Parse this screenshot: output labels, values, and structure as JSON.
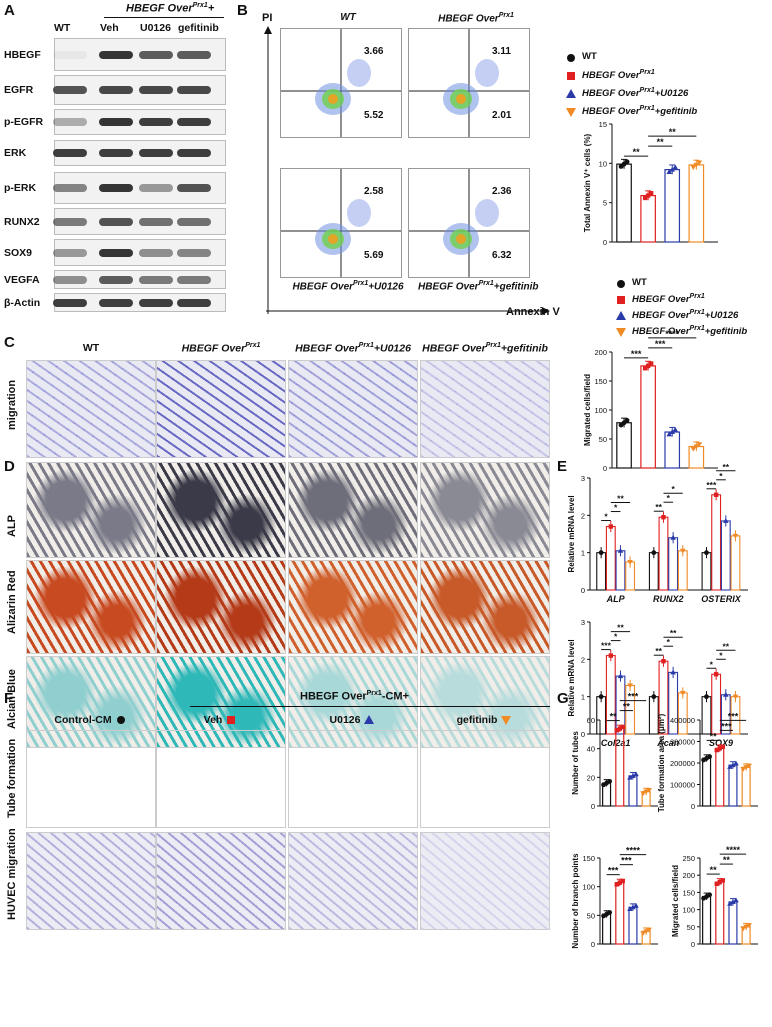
{
  "panel_labels": {
    "A": "A",
    "B": "B",
    "C": "C",
    "D": "D",
    "E": "E",
    "F": "F",
    "G": "G"
  },
  "panelA": {
    "header_group": "HBEGF Over",
    "header_group_sup": "Prx1",
    "header_group_suffix": "+",
    "columns": [
      "WT",
      "Veh",
      "U0126",
      "gefitinib"
    ],
    "rows": [
      "HBEGF",
      "EGFR",
      "p-EGFR",
      "ERK",
      "p-ERK",
      "RUNX2",
      "SOX9",
      "VEGFA",
      "β-Actin"
    ]
  },
  "panelB": {
    "y_axis_label": "PI",
    "x_axis_label": "Annexin V",
    "plots": [
      {
        "title": "WT",
        "upper": "3.66",
        "lower": "5.52"
      },
      {
        "title": "HBEGF Over",
        "title_sup": "Prx1",
        "upper": "3.11",
        "lower": "2.01"
      },
      {
        "title": "HBEGF Over",
        "title_sup": "Prx1",
        "title_suffix": "+U0126",
        "upper": "2.58",
        "lower": "5.69"
      },
      {
        "title": "HBEGF Over",
        "title_sup": "Prx1",
        "title_suffix": "+gefitinib",
        "upper": "2.36",
        "lower": "6.32"
      }
    ]
  },
  "legend": [
    {
      "text": "WT",
      "sup": "",
      "suffix": "",
      "color": "#111111",
      "shape": "circle"
    },
    {
      "text": "HBEGF Over",
      "sup": "Prx1",
      "suffix": "",
      "color": "#e02020",
      "shape": "square"
    },
    {
      "text": "HBEGF Over",
      "sup": "Prx1",
      "suffix": "+U0126",
      "color": "#2a3aa8",
      "shape": "triangle-up"
    },
    {
      "text": "HBEGF Over",
      "sup": "Prx1",
      "suffix": "+gefitinib",
      "color": "#f08a24",
      "shape": "triangle-down"
    }
  ],
  "panelC": {
    "row_label": "migration",
    "columns": [
      {
        "text": "WT",
        "sup": "",
        "suffix": ""
      },
      {
        "text": "HBEGF Over",
        "sup": "Prx1",
        "suffix": ""
      },
      {
        "text": "HBEGF Over",
        "sup": "Prx1",
        "suffix": "+U0126"
      },
      {
        "text": "HBEGF Over",
        "sup": "Prx1",
        "suffix": "+gefitinib"
      }
    ]
  },
  "panelD": {
    "rows": [
      "ALP",
      "Alizarin Red",
      "Alcian Blue"
    ]
  },
  "panelF": {
    "header": "HBEGF Over",
    "header_sup": "Prx1",
    "header_suffix": "-CM+",
    "columns": [
      "Control-CM",
      "Veh",
      "U0126",
      "gefitinib"
    ],
    "column_marker_colors": [
      "#111111",
      "#e02020",
      "#2a3aa8",
      "#f08a24"
    ],
    "rows": [
      "Tube formation",
      "HUVEC migration"
    ]
  },
  "chart_data": [
    {
      "type": "bar",
      "panel": "B",
      "ylabel": "Total Annexin V⁺ cells (%)",
      "ylim": [
        0,
        15
      ],
      "yticks": [
        0,
        5,
        10,
        15
      ],
      "values": [
        9.9,
        5.9,
        9.2,
        9.8
      ],
      "sig": [
        {
          "from": 0,
          "to": 1,
          "label": "**"
        },
        {
          "from": 1,
          "to": 2,
          "label": "**"
        },
        {
          "from": 1,
          "to": 3,
          "label": "**"
        }
      ]
    },
    {
      "type": "bar",
      "panel": "C",
      "ylabel": "Migrated cells/field",
      "ylim": [
        0,
        200
      ],
      "yticks": [
        0,
        50,
        100,
        150,
        200
      ],
      "values": [
        78,
        176,
        62,
        37
      ],
      "sig": [
        {
          "from": 0,
          "to": 1,
          "label": "***"
        },
        {
          "from": 1,
          "to": 2,
          "label": "***"
        },
        {
          "from": 1,
          "to": 3,
          "label": "****"
        }
      ]
    },
    {
      "type": "bar",
      "panel": "E1",
      "ylabel": "Relative mRNA level",
      "ylim": [
        0,
        3
      ],
      "yticks": [
        0,
        1,
        2,
        3
      ],
      "categories": [
        "ALP",
        "RUNX2",
        "OSTERIX"
      ],
      "groups": [
        [
          1,
          1.7,
          1.05,
          0.75
        ],
        [
          1,
          1.95,
          1.4,
          1.05
        ],
        [
          1,
          2.55,
          1.85,
          1.45
        ]
      ],
      "sig": [
        [
          {
            "from": 0,
            "to": 1,
            "label": "*"
          },
          {
            "from": 1,
            "to": 2,
            "label": "*"
          },
          {
            "from": 1,
            "to": 3,
            "label": "**"
          }
        ],
        [
          {
            "from": 0,
            "to": 1,
            "label": "**"
          },
          {
            "from": 1,
            "to": 2,
            "label": "*"
          },
          {
            "from": 1,
            "to": 3,
            "label": "*"
          }
        ],
        [
          {
            "from": 0,
            "to": 1,
            "label": "***"
          },
          {
            "from": 1,
            "to": 2,
            "label": "*"
          },
          {
            "from": 1,
            "to": 3,
            "label": "**"
          }
        ]
      ]
    },
    {
      "type": "bar",
      "panel": "E2",
      "ylabel": "Relative mRNA level",
      "ylim": [
        0,
        3
      ],
      "yticks": [
        0,
        1,
        2,
        3
      ],
      "categories": [
        "Col2a1",
        "Acan",
        "SOX9"
      ],
      "groups": [
        [
          1,
          2.1,
          1.55,
          1.3
        ],
        [
          1,
          1.95,
          1.65,
          1.1
        ],
        [
          1,
          1.6,
          1.05,
          1.0
        ]
      ],
      "sig": [
        [
          {
            "from": 0,
            "to": 1,
            "label": "***"
          },
          {
            "from": 1,
            "to": 2,
            "label": "*"
          },
          {
            "from": 1,
            "to": 3,
            "label": "**"
          }
        ],
        [
          {
            "from": 0,
            "to": 1,
            "label": "**"
          },
          {
            "from": 1,
            "to": 2,
            "label": "*"
          },
          {
            "from": 1,
            "to": 3,
            "label": "**"
          }
        ],
        [
          {
            "from": 0,
            "to": 1,
            "label": "*"
          },
          {
            "from": 1,
            "to": 2,
            "label": "*"
          },
          {
            "from": 1,
            "to": 3,
            "label": "**"
          }
        ]
      ]
    },
    {
      "type": "bar",
      "panel": "G1",
      "ylabel": "Number of tubes",
      "ylim": [
        0,
        60
      ],
      "yticks": [
        0,
        20,
        40,
        60
      ],
      "values": [
        16,
        54,
        21,
        10
      ],
      "sig": [
        {
          "from": 0,
          "to": 1,
          "label": "**"
        },
        {
          "from": 1,
          "to": 2,
          "label": "**"
        },
        {
          "from": 1,
          "to": 3,
          "label": "***"
        }
      ]
    },
    {
      "type": "bar",
      "panel": "G2",
      "ylabel": "Tube formation area (μm²)",
      "ylim": [
        0,
        400000
      ],
      "yticks": [
        0,
        100000,
        200000,
        300000,
        400000
      ],
      "values": [
        222000,
        268000,
        190000,
        180000
      ],
      "sig": [
        {
          "from": 0,
          "to": 1,
          "label": "**"
        },
        {
          "from": 1,
          "to": 2,
          "label": "***"
        },
        {
          "from": 1,
          "to": 3,
          "label": "***"
        }
      ]
    },
    {
      "type": "bar",
      "panel": "G3",
      "ylabel": "Number of branch points",
      "ylim": [
        0,
        150
      ],
      "yticks": [
        0,
        50,
        100,
        150
      ],
      "values": [
        52,
        107,
        64,
        22
      ],
      "sig": [
        {
          "from": 0,
          "to": 1,
          "label": "***"
        },
        {
          "from": 1,
          "to": 2,
          "label": "***"
        },
        {
          "from": 1,
          "to": 3,
          "label": "****"
        }
      ]
    },
    {
      "type": "bar",
      "panel": "G4",
      "ylabel": "Migrated cells/field",
      "ylim": [
        0,
        250
      ],
      "yticks": [
        0,
        50,
        100,
        150,
        200,
        250
      ],
      "values": [
        138,
        180,
        122,
        50
      ],
      "sig": [
        {
          "from": 0,
          "to": 1,
          "label": "**"
        },
        {
          "from": 1,
          "to": 2,
          "label": "**"
        },
        {
          "from": 1,
          "to": 3,
          "label": "****"
        }
      ]
    }
  ],
  "group_colors": [
    "#111111",
    "#e02020",
    "#2a3aa8",
    "#f08a24"
  ]
}
